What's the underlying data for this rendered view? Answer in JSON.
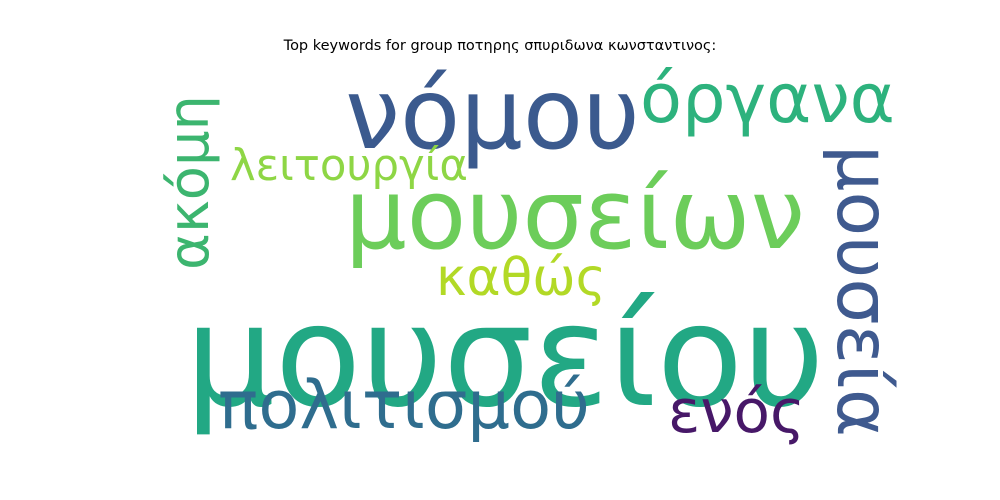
{
  "chart_data": {
    "type": "wordcloud",
    "title": "Top keywords for group ποτηρης σπυριδωνα κωνσταντινος:",
    "words": [
      {
        "text": "μουσείου",
        "weight": 1.0,
        "color": "#22a884"
      },
      {
        "text": "νόμου",
        "weight": 0.66,
        "color": "#3b5a8e"
      },
      {
        "text": "μουσείων",
        "weight": 0.6,
        "color": "#6ccd5a"
      },
      {
        "text": "όργανα",
        "weight": 0.45,
        "color": "#2db27d"
      },
      {
        "text": "μουσεία",
        "weight": 0.45,
        "color": "#3f5a8f"
      },
      {
        "text": "πολιτισμού",
        "weight": 0.4,
        "color": "#2f6d8e"
      },
      {
        "text": "ακόμη",
        "weight": 0.38,
        "color": "#3cb56f"
      },
      {
        "text": "ενός",
        "weight": 0.32,
        "color": "#471868"
      },
      {
        "text": "καθώς",
        "weight": 0.3,
        "color": "#b2d926"
      },
      {
        "text": "λειτουργία",
        "weight": 0.25,
        "color": "#8ed645"
      }
    ]
  }
}
